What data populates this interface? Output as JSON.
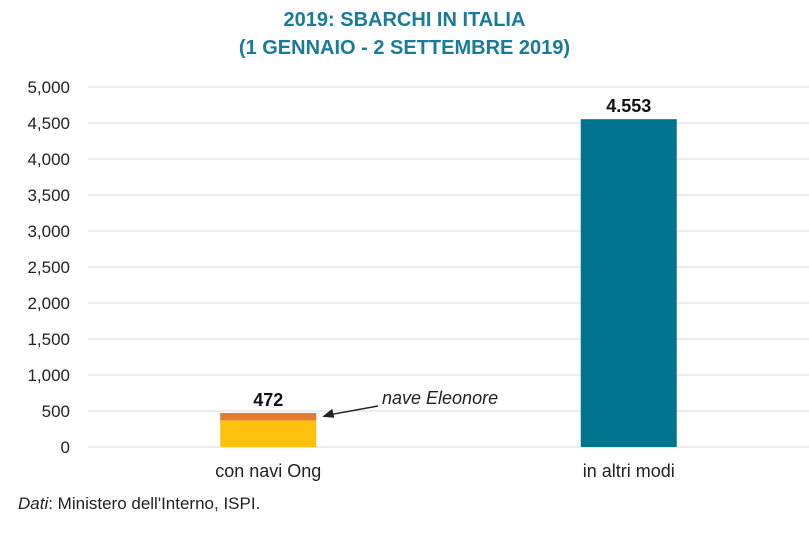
{
  "chart_data": {
    "type": "bar",
    "title": "2019: SBARCHI IN ITALIA",
    "subtitle": "(1 GENNAIO - 2 SETTEMBRE 2019)",
    "categories": [
      "con navi Ong",
      "in altri modi"
    ],
    "series": [
      {
        "name": "",
        "values": [
          370,
          4553
        ]
      },
      {
        "name": "nave Eleonore",
        "values": [
          102,
          0
        ]
      }
    ],
    "totals": [
      472,
      4553
    ],
    "total_labels": [
      "472",
      "4.553"
    ],
    "annotation": "nave Eleonore",
    "ylim": [
      0,
      5000
    ],
    "yticks": [
      0,
      500,
      1000,
      1500,
      2000,
      2500,
      3000,
      3500,
      4000,
      4500,
      5000
    ],
    "ytick_labels": [
      "0",
      "500",
      "1,000",
      "1,500",
      "2,000",
      "2,500",
      "3,000",
      "3,500",
      "4,000",
      "4,500",
      "5,000"
    ],
    "grid": true,
    "colors": {
      "ong_base": "#fdc00f",
      "eleonore": "#e47a32",
      "altri": "#00738f",
      "title": "#1a7a9a",
      "grid": "#d9d9d9"
    }
  },
  "source": {
    "label": "Dati",
    "text": ": Ministero dell'Interno, ISPI."
  }
}
